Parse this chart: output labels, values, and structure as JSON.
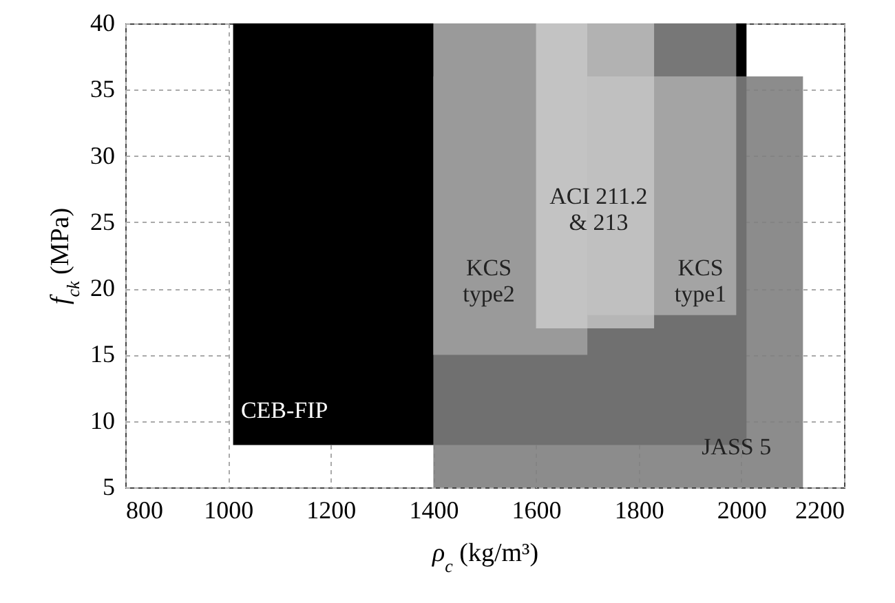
{
  "chart_data": {
    "type": "area",
    "xlabel": "ρ$_{c}$ (kg/m³)",
    "ylabel": "f$_{ck}$ (MPa)",
    "xlim": [
      800,
      2200
    ],
    "xticks": [
      800,
      1000,
      1200,
      1400,
      1600,
      1800,
      2000,
      2200
    ],
    "ylim": [
      5,
      40
    ],
    "yticks": [
      5,
      10,
      15,
      20,
      25,
      30,
      35,
      40
    ],
    "grid": true,
    "series": [
      {
        "name": "CEB-FIP",
        "color": "#000000",
        "x": [
          1010,
          2010,
          2010,
          1010
        ],
        "values": [
          40,
          40,
          8.2,
          8.2
        ]
      },
      {
        "name": "JASS 5",
        "color": "#7e7e7e",
        "x": [
          1400,
          2120,
          2120,
          1400
        ],
        "values": [
          36,
          36,
          5,
          5
        ]
      },
      {
        "name": "KCS\ntype2",
        "color": "#9a9a9a",
        "x": [
          1400,
          1700,
          1700,
          1400
        ],
        "values": [
          40,
          40,
          15,
          15
        ]
      },
      {
        "name": "ACI 211.2\n& 213",
        "color": "#d4d4d4",
        "x": [
          1600,
          1830,
          1830,
          1600
        ],
        "values": [
          40,
          40,
          17,
          17
        ]
      },
      {
        "name": "KCS\ntype1",
        "color": "#c6c6c6",
        "x": [
          1700,
          1990,
          1990,
          1700
        ],
        "values": [
          40,
          40,
          18,
          18
        ]
      }
    ]
  }
}
